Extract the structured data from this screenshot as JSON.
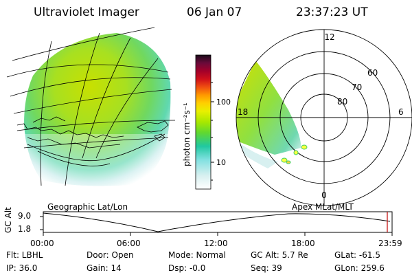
{
  "header": {
    "instrument": "Ultraviolet Imager",
    "date": "06 Jan 07",
    "time": "23:37:23 UT"
  },
  "colorbar": {
    "unit_label": "photon cm⁻²s⁻¹",
    "ticks": [
      "100",
      "10"
    ],
    "colors": [
      "#1a0a1a",
      "#3a0a40",
      "#6a0a3a",
      "#a3002a",
      "#d0101a",
      "#f05010",
      "#ff9a00",
      "#ffd000",
      "#e8f000",
      "#a8e800",
      "#60d830",
      "#20c8a0",
      "#80e0e0",
      "#d8f0f0",
      "#ffffff"
    ]
  },
  "polar_plot": {
    "mlt_labels": {
      "top": "12",
      "right": "6",
      "bottom": "0",
      "left": "18"
    },
    "lat_labels": [
      "60",
      "70",
      "80"
    ]
  },
  "timeline": {
    "left_title": "Geographic Lat/Lon",
    "right_title": "Apex MLat/MLT",
    "y_label": "GC Alt",
    "y_ticks": [
      "9.0",
      "1.8"
    ],
    "x_ticks": [
      "00:00",
      "06:00",
      "12:00",
      "18:00",
      "23:59"
    ]
  },
  "status": {
    "row1": [
      "Flt: LBHL",
      "Door: Open",
      "Mode: Normal",
      "GC Alt: 5.7 Re",
      "GLat: -61.5"
    ],
    "row2": [
      "IP: 36.0",
      "Gain: 14",
      "Dsp:   -0.0",
      "Seq: 39",
      "GLon: 259.6"
    ]
  }
}
